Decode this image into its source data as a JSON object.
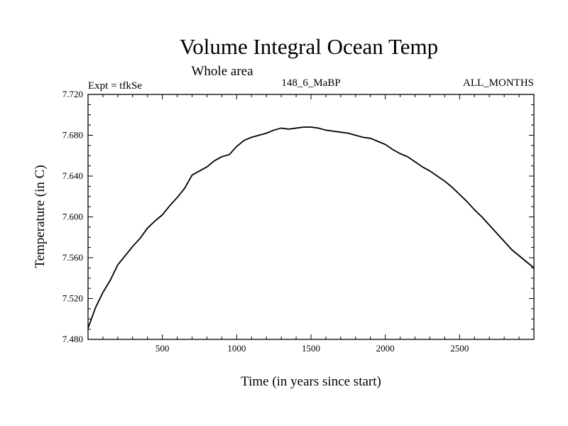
{
  "chart_data": {
    "type": "line",
    "title": "Volume Integral Ocean Temp",
    "subtitle": "Whole area",
    "left_label": "Expt = tfkSe",
    "center_label": "148_6_MaBP",
    "right_label": "ALL_MONTHS",
    "xlabel": "Time (in years since start)",
    "ylabel": "Temperature (in C)",
    "xlim": [
      0,
      3000
    ],
    "ylim": [
      7.48,
      7.72
    ],
    "xticks": [
      500,
      1000,
      1500,
      2000,
      2500
    ],
    "xtick_labels": [
      "500",
      "1000",
      "1500",
      "2000",
      "2500"
    ],
    "yticks": [
      7.48,
      7.52,
      7.56,
      7.6,
      7.64,
      7.68,
      7.72
    ],
    "ytick_labels": [
      "7.480",
      "7.520",
      "7.560",
      "7.600",
      "7.640",
      "7.680",
      "7.720"
    ],
    "series": [
      {
        "name": "Volume integral ocean temperature",
        "color": "#000000",
        "x": [
          0,
          50,
          100,
          150,
          200,
          250,
          300,
          350,
          400,
          450,
          500,
          550,
          600,
          650,
          700,
          750,
          800,
          850,
          900,
          950,
          1000,
          1050,
          1100,
          1150,
          1200,
          1250,
          1300,
          1350,
          1400,
          1450,
          1500,
          1550,
          1600,
          1650,
          1700,
          1750,
          1800,
          1850,
          1900,
          1950,
          2000,
          2050,
          2100,
          2150,
          2200,
          2250,
          2300,
          2350,
          2400,
          2450,
          2500,
          2550,
          2600,
          2650,
          2700,
          2750,
          2800,
          2850,
          2900,
          2950,
          3000
        ],
        "y": [
          7.491,
          7.511,
          7.526,
          7.538,
          7.553,
          7.562,
          7.571,
          7.579,
          7.589,
          7.596,
          7.602,
          7.611,
          7.619,
          7.628,
          7.641,
          7.645,
          7.649,
          7.655,
          7.659,
          7.661,
          7.669,
          7.675,
          7.678,
          7.68,
          7.682,
          7.685,
          7.687,
          7.686,
          7.687,
          7.688,
          7.688,
          7.687,
          7.685,
          7.684,
          7.683,
          7.682,
          7.68,
          7.678,
          7.677,
          7.674,
          7.671,
          7.666,
          7.662,
          7.659,
          7.654,
          7.649,
          7.645,
          7.64,
          7.635,
          7.629,
          7.622,
          7.615,
          7.607,
          7.6,
          7.592,
          7.584,
          7.576,
          7.568,
          7.562,
          7.556,
          7.55
        ]
      }
    ]
  }
}
